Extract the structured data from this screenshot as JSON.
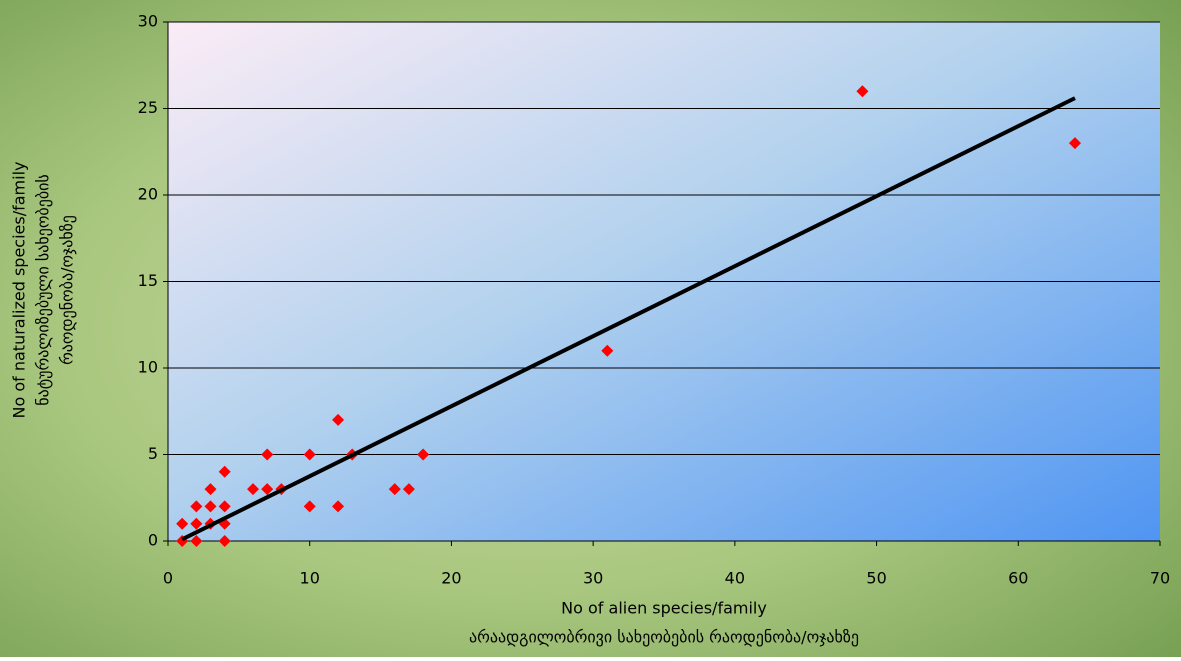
{
  "chart_data": {
    "type": "scatter",
    "x": [
      1,
      1,
      2,
      2,
      2,
      3,
      3,
      3,
      4,
      4,
      4,
      4,
      6,
      7,
      7,
      8,
      10,
      10,
      12,
      12,
      13,
      16,
      17,
      18,
      31,
      49,
      64
    ],
    "values": [
      0,
      1,
      0,
      1,
      2,
      1,
      2,
      3,
      0,
      1,
      2,
      4,
      3,
      3,
      5,
      3,
      2,
      5,
      2,
      7,
      5,
      3,
      3,
      5,
      11,
      26,
      23
    ],
    "color": "#ff0000",
    "trendline": {
      "x": [
        1,
        64
      ],
      "values": [
        0.1,
        25.6
      ],
      "color": "#000000"
    },
    "xlim": [
      0,
      70
    ],
    "xticks": [
      0,
      10,
      20,
      30,
      40,
      50,
      60,
      70
    ],
    "ylim": [
      0,
      30
    ],
    "yticks": [
      0,
      5,
      10,
      15,
      20,
      25,
      30
    ],
    "grid": true,
    "x_label": [
      "No of alien species/family",
      "არაადგილობრივი სახეობების რაოდენობა/ოჯახზე"
    ],
    "y_label": [
      "No of naturalized species/family",
      "ნატურალიზებული სახეობების",
      "რაოდენობა/ოჯახზე"
    ]
  }
}
